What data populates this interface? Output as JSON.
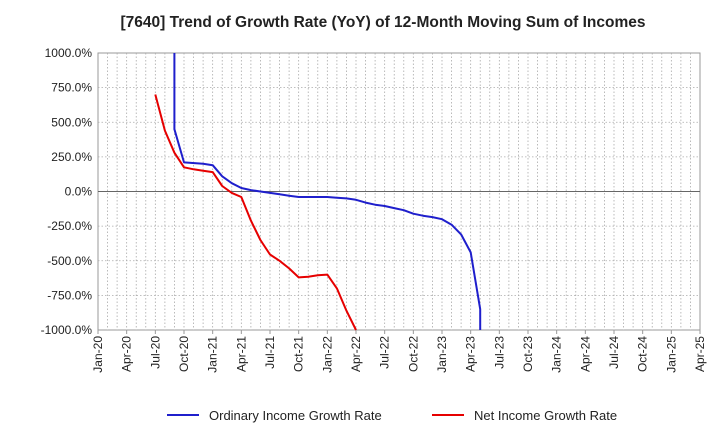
{
  "chart_data": {
    "type": "line",
    "title": "[7640]  Trend of Growth Rate (YoY) of 12-Month Moving Sum of Incomes",
    "xlabel": "",
    "ylabel": "",
    "x_ticks": [
      "Jan-20",
      "Apr-20",
      "Jul-20",
      "Oct-20",
      "Jan-21",
      "Apr-21",
      "Jul-21",
      "Oct-21",
      "Jan-22",
      "Apr-22",
      "Jul-22",
      "Oct-22",
      "Jan-23",
      "Apr-23",
      "Jul-23",
      "Oct-23",
      "Jan-24",
      "Apr-24",
      "Jul-24",
      "Oct-24",
      "Jan-25",
      "Apr-25"
    ],
    "y_ticks": [
      "1000.0%",
      "750.0%",
      "500.0%",
      "250.0%",
      "0.0%",
      "-250.0%",
      "-500.0%",
      "-750.0%",
      "-1000.0%"
    ],
    "ylim": [
      -1000,
      1000
    ],
    "grid": true,
    "legend_position": "bottom",
    "series": [
      {
        "name": "Ordinary Income Growth Rate",
        "color": "#1f1fcc",
        "points": [
          {
            "x": "Sep-20",
            "y": 1000
          },
          {
            "x": "Sep-20",
            "y": 450
          },
          {
            "x": "Oct-20",
            "y": 210
          },
          {
            "x": "Dec-20",
            "y": 200
          },
          {
            "x": "Jan-21",
            "y": 190
          },
          {
            "x": "Feb-21",
            "y": 110
          },
          {
            "x": "Mar-21",
            "y": 60
          },
          {
            "x": "Apr-21",
            "y": 25
          },
          {
            "x": "May-21",
            "y": 10
          },
          {
            "x": "Jun-21",
            "y": 0
          },
          {
            "x": "Jul-21",
            "y": -10
          },
          {
            "x": "Aug-21",
            "y": -20
          },
          {
            "x": "Sep-21",
            "y": -30
          },
          {
            "x": "Oct-21",
            "y": -40
          },
          {
            "x": "Nov-21",
            "y": -40
          },
          {
            "x": "Dec-21",
            "y": -40
          },
          {
            "x": "Jan-22",
            "y": -40
          },
          {
            "x": "Feb-22",
            "y": -45
          },
          {
            "x": "Mar-22",
            "y": -50
          },
          {
            "x": "Apr-22",
            "y": -60
          },
          {
            "x": "May-22",
            "y": -80
          },
          {
            "x": "Jun-22",
            "y": -95
          },
          {
            "x": "Jul-22",
            "y": -105
          },
          {
            "x": "Aug-22",
            "y": -120
          },
          {
            "x": "Sep-22",
            "y": -135
          },
          {
            "x": "Oct-22",
            "y": -160
          },
          {
            "x": "Nov-22",
            "y": -175
          },
          {
            "x": "Dec-22",
            "y": -185
          },
          {
            "x": "Jan-23",
            "y": -200
          },
          {
            "x": "Feb-23",
            "y": -240
          },
          {
            "x": "Mar-23",
            "y": -310
          },
          {
            "x": "Apr-23",
            "y": -440
          },
          {
            "x": "May-23",
            "y": -850
          },
          {
            "x": "May-23",
            "y": -1000
          }
        ]
      },
      {
        "name": "Net Income Growth Rate",
        "color": "#e60000",
        "points": [
          {
            "x": "Jul-20",
            "y": 700
          },
          {
            "x": "Aug-20",
            "y": 440
          },
          {
            "x": "Sep-20",
            "y": 280
          },
          {
            "x": "Oct-20",
            "y": 175
          },
          {
            "x": "Nov-20",
            "y": 160
          },
          {
            "x": "Dec-20",
            "y": 150
          },
          {
            "x": "Jan-21",
            "y": 140
          },
          {
            "x": "Feb-21",
            "y": 40
          },
          {
            "x": "Mar-21",
            "y": -10
          },
          {
            "x": "Apr-21",
            "y": -40
          },
          {
            "x": "May-21",
            "y": -210
          },
          {
            "x": "Jun-21",
            "y": -350
          },
          {
            "x": "Jul-21",
            "y": -455
          },
          {
            "x": "Aug-21",
            "y": -500
          },
          {
            "x": "Sep-21",
            "y": -555
          },
          {
            "x": "Oct-21",
            "y": -620
          },
          {
            "x": "Nov-21",
            "y": -615
          },
          {
            "x": "Dec-21",
            "y": -605
          },
          {
            "x": "Jan-22",
            "y": -600
          },
          {
            "x": "Feb-22",
            "y": -700
          },
          {
            "x": "Mar-22",
            "y": -860
          },
          {
            "x": "Apr-22",
            "y": -1000
          }
        ]
      }
    ]
  }
}
